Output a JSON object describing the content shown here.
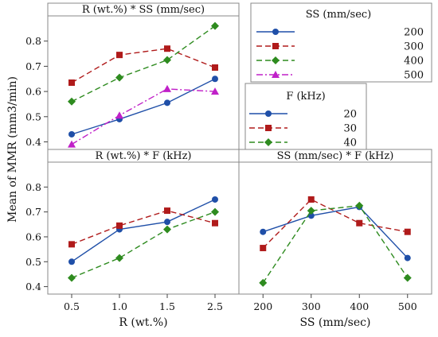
{
  "y_axis_label": "Mean of MMR (mm3/min)",
  "x_axis_label_left": "R (wt.%)",
  "x_axis_label_right": "SS (mm/sec)",
  "legend_ss": {
    "title": "SS (mm/sec)",
    "entries": [
      {
        "label": "200",
        "color": "#1f4fa8",
        "dash": "solid",
        "marker": "circle"
      },
      {
        "label": "300",
        "color": "#b01b1b",
        "dash": "dashed",
        "marker": "square"
      },
      {
        "label": "400",
        "color": "#2e8b1f",
        "dash": "dashed",
        "marker": "diamond"
      },
      {
        "label": "500",
        "color": "#c020c8",
        "dash": "dashdot",
        "marker": "triangle"
      }
    ]
  },
  "legend_f": {
    "title": "F (kHz)",
    "entries": [
      {
        "label": "20",
        "color": "#1f4fa8",
        "dash": "solid",
        "marker": "circle"
      },
      {
        "label": "30",
        "color": "#b01b1b",
        "dash": "dashed",
        "marker": "square"
      },
      {
        "label": "40",
        "color": "#2e8b1f",
        "dash": "dashed",
        "marker": "diamond"
      }
    ]
  },
  "chart_data": [
    {
      "type": "line",
      "title": "R (wt.%) * SS (mm/sec)",
      "x": [
        "0.5",
        "1.0",
        "1.5",
        "2.5"
      ],
      "ylim": [
        0.37,
        0.9
      ],
      "yticks": [
        0.4,
        0.5,
        0.6,
        0.7,
        0.8
      ],
      "series": [
        {
          "name": "200",
          "values": [
            0.43,
            0.49,
            0.555,
            0.65
          ]
        },
        {
          "name": "300",
          "values": [
            0.635,
            0.745,
            0.77,
            0.695
          ]
        },
        {
          "name": "400",
          "values": [
            0.56,
            0.655,
            0.725,
            0.86
          ]
        },
        {
          "name": "500",
          "values": [
            0.39,
            0.505,
            0.61,
            0.6
          ]
        }
      ]
    },
    {
      "type": "line",
      "title": "R (wt.%) * F (kHz)",
      "x": [
        "0.5",
        "1.0",
        "1.5",
        "2.5"
      ],
      "ylim": [
        0.37,
        0.9
      ],
      "yticks": [
        0.4,
        0.5,
        0.6,
        0.7,
        0.8
      ],
      "series": [
        {
          "name": "20",
          "values": [
            0.5,
            0.63,
            0.66,
            0.75
          ]
        },
        {
          "name": "30",
          "values": [
            0.57,
            0.645,
            0.705,
            0.655
          ]
        },
        {
          "name": "40",
          "values": [
            0.435,
            0.515,
            0.63,
            0.7
          ]
        }
      ]
    },
    {
      "type": "line",
      "title": "SS (mm/sec) * F (kHz)",
      "x": [
        "200",
        "300",
        "400",
        "500"
      ],
      "ylim": [
        0.37,
        0.9
      ],
      "series": [
        {
          "name": "20",
          "values": [
            0.62,
            0.685,
            0.72,
            0.515
          ]
        },
        {
          "name": "30",
          "values": [
            0.555,
            0.75,
            0.655,
            0.62
          ]
        },
        {
          "name": "40",
          "values": [
            0.415,
            0.705,
            0.725,
            0.435
          ]
        }
      ]
    }
  ]
}
